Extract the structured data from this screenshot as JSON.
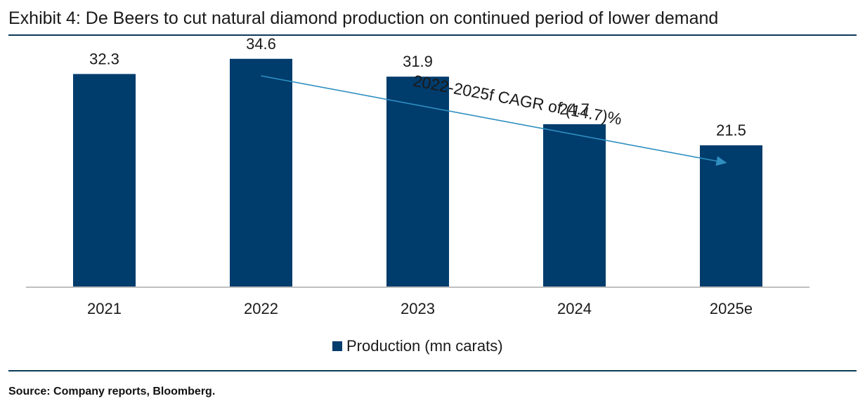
{
  "header": {
    "title": "Exhibit 4: De Beers to cut natural diamond production on continued period of lower demand"
  },
  "footer": {
    "source": "Source: Company reports, Bloomberg."
  },
  "chart_data": {
    "type": "bar",
    "categories": [
      "2021",
      "2022",
      "2023",
      "2024",
      "2025e"
    ],
    "series": [
      {
        "name": "Production (mn carats)",
        "values": [
          32.3,
          34.6,
          31.9,
          24.7,
          21.5
        ]
      }
    ],
    "data_labels": [
      "32.3",
      "34.6",
      "31.9",
      "24.7",
      "21.5"
    ],
    "ylim": [
      0,
      40
    ],
    "grid": false,
    "legend_position": "bottom",
    "annotation": {
      "text": "2022-2025f CAGR of (14.7)%",
      "from_category": "2022",
      "to_category": "2025e"
    },
    "colors": {
      "bar": "#003c6c",
      "arrow": "#2e8fc0",
      "axis": "#bfbfbf"
    }
  }
}
